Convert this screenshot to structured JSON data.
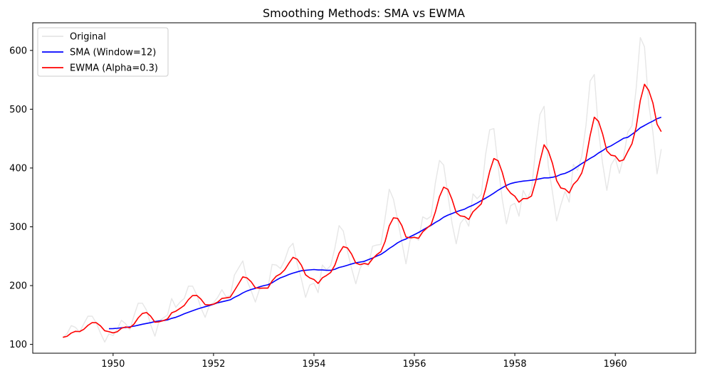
{
  "chart_data": {
    "type": "line",
    "title": "Smoothing Methods: SMA vs EWMA",
    "xlabel": "",
    "ylabel": "",
    "xlim": [
      1948.4,
      1961.6
    ],
    "ylim": [
      85,
      647
    ],
    "xticks": [
      1950,
      1952,
      1954,
      1956,
      1958,
      1960
    ],
    "yticks": [
      100,
      200,
      300,
      400,
      500,
      600
    ],
    "grid": false,
    "legend_position": "top-left",
    "x_start": 1949.0,
    "x_step": 0.08333,
    "series": [
      {
        "name": "Original",
        "color": "#e6e6e6",
        "values": [
          112,
          118,
          132,
          129,
          121,
          135,
          148,
          148,
          136,
          119,
          104,
          118,
          115,
          126,
          141,
          135,
          125,
          149,
          170,
          170,
          158,
          133,
          114,
          140,
          145,
          150,
          178,
          163,
          172,
          178,
          199,
          199,
          184,
          162,
          146,
          166,
          171,
          180,
          193,
          181,
          183,
          218,
          230,
          242,
          209,
          191,
          172,
          194,
          196,
          196,
          236,
          235,
          229,
          243,
          264,
          272,
          237,
          211,
          180,
          201,
          204,
          188,
          235,
          227,
          234,
          264,
          302,
          293,
          259,
          229,
          203,
          229,
          242,
          233,
          267,
          269,
          270,
          315,
          364,
          347,
          312,
          274,
          237,
          278,
          284,
          277,
          317,
          313,
          318,
          374,
          413,
          405,
          355,
          306,
          271,
          306,
          315,
          301,
          356,
          348,
          355,
          422,
          465,
          467,
          404,
          347,
          305,
          336,
          340,
          318,
          362,
          348,
          363,
          435,
          491,
          505,
          404,
          359,
          310,
          337,
          360,
          342,
          406,
          396,
          420,
          472,
          548,
          559,
          463,
          407,
          362,
          405,
          417,
          391,
          419,
          461,
          472,
          535,
          622,
          606,
          508,
          461,
          390,
          432
        ]
      },
      {
        "name": "SMA (Window=12)",
        "color": "#0000ff",
        "start_index": 11,
        "values": [
          126.7,
          126.9,
          127.4,
          128.3,
          128.8,
          129.8,
          131.0,
          132.6,
          134.3,
          135.6,
          137.0,
          138.8,
          139.9,
          140.5,
          141.6,
          144.3,
          146.1,
          148.9,
          152.1,
          154.7,
          157.2,
          159.8,
          162.1,
          164.1,
          166.0,
          168.3,
          170.8,
          172.4,
          174.1,
          175.8,
          180.0,
          183.4,
          187.6,
          190.9,
          193.4,
          195.3,
          197.9,
          199.9,
          201.4,
          204.9,
          209.3,
          213.3,
          215.8,
          218.8,
          221.3,
          223.3,
          225.3,
          226.0,
          226.7,
          227.3,
          226.6,
          226.6,
          226.0,
          226.0,
          227.8,
          230.8,
          232.5,
          234.6,
          236.8,
          238.8,
          240.0,
          241.2,
          244.1,
          246.8,
          250.2,
          253.1,
          257.8,
          263.2,
          267.7,
          272.8,
          276.6,
          279.3,
          283.2,
          286.7,
          290.3,
          294.4,
          298.5,
          302.5,
          307.3,
          311.3,
          316.3,
          319.8,
          322.5,
          325.4,
          327.8,
          330.0,
          333.8,
          336.8,
          340.5,
          344.6,
          348.6,
          352.8,
          357.3,
          362.2,
          366.4,
          370.4,
          373.5,
          375.3,
          376.6,
          377.7,
          378.4,
          379.2,
          380.3,
          381.7,
          383.2,
          383.2,
          384.2,
          385.9,
          389.1,
          390.8,
          394.0,
          397.9,
          402.7,
          407.5,
          411.8,
          416.3,
          420.3,
          425.5,
          429.6,
          434.7,
          437.7,
          442.0,
          446.2,
          450.6,
          452.2,
          457.3,
          462.5,
          468.5,
          472.3,
          476.3,
          479.8,
          483.8,
          486.4
        ]
      },
      {
        "name": "EWMA (Alpha=0.3)",
        "color": "#ff0000",
        "values": [
          112.0,
          113.8,
          119.3,
          122.2,
          121.8,
          125.7,
          132.4,
          137.1,
          136.8,
          131.4,
          123.2,
          121.6,
          119.6,
          121.5,
          127.4,
          129.7,
          128.3,
          134.5,
          145.1,
          152.6,
          154.2,
          147.8,
          137.7,
          138.4,
          140.4,
          143.3,
          153.7,
          156.5,
          161.2,
          166.2,
          176.1,
          183.0,
          183.3,
          176.9,
          167.6,
          167.2,
          168.4,
          171.9,
          178.2,
          179.1,
          180.3,
          191.6,
          203.1,
          214.8,
          213.1,
          206.5,
          196.2,
          195.6,
          195.7,
          195.8,
          207.9,
          216.0,
          219.9,
          226.8,
          237.9,
          248.1,
          244.8,
          234.7,
          218.3,
          213.1,
          210.4,
          203.7,
          213.1,
          217.3,
          222.3,
          234.8,
          254.9,
          266.3,
          264.1,
          253.6,
          238.4,
          235.6,
          237.5,
          236.2,
          245.5,
          252.6,
          257.8,
          275.0,
          301.7,
          315.3,
          314.3,
          302.2,
          282.6,
          281.2,
          282.0,
          280.5,
          291.4,
          297.8,
          303.8,
          324.9,
          351.3,
          367.4,
          363.8,
          346.5,
          323.9,
          318.5,
          317.5,
          312.5,
          325.5,
          332.2,
          339.1,
          364.0,
          394.3,
          416.1,
          412.4,
          392.8,
          366.4,
          357.3,
          352.1,
          341.9,
          348.0,
          348.0,
          352.5,
          377.3,
          411.4,
          439.5,
          428.9,
          408.0,
          378.6,
          366.1,
          364.3,
          357.6,
          372.1,
          379.3,
          391.5,
          415.6,
          455.3,
          486.4,
          479.4,
          457.7,
          429.0,
          421.8,
          420.4,
          411.6,
          413.8,
          428.0,
          441.2,
          469.3,
          515.1,
          542.4,
          532.1,
          510.8,
          474.6,
          461.8
        ]
      }
    ]
  }
}
